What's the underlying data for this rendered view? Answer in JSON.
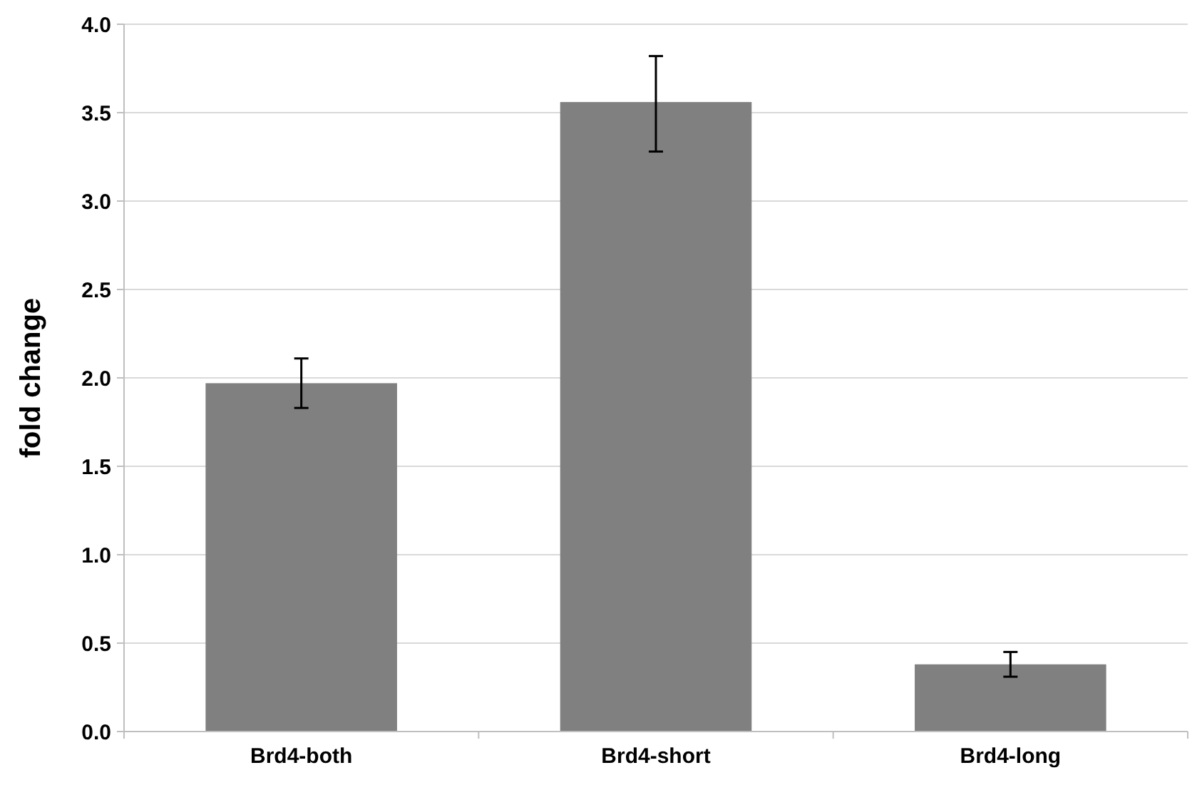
{
  "chart_data": {
    "type": "bar",
    "ylabel": "fold change",
    "categories": [
      "Brd4-both",
      "Brd4-short",
      "Brd4-long"
    ],
    "values": [
      1.97,
      3.56,
      0.38
    ],
    "color": "#808080",
    "errors": [
      [
        1.83,
        2.11
      ],
      [
        3.28,
        3.82
      ],
      [
        0.31,
        0.45
      ]
    ],
    "ylim": [
      0,
      4
    ],
    "yticks": [
      {
        "value": 0,
        "label": "0.0"
      },
      {
        "value": 0.5,
        "label": "0.5"
      },
      {
        "value": 1,
        "label": "1.0"
      },
      {
        "value": 1.5,
        "label": "1.5"
      },
      {
        "value": 2,
        "label": "2.0"
      },
      {
        "value": 2.5,
        "label": "2.5"
      },
      {
        "value": 3,
        "label": "3.0"
      },
      {
        "value": 3.5,
        "label": "3.5"
      },
      {
        "value": 4,
        "label": "4.0"
      }
    ],
    "grid": "y"
  }
}
